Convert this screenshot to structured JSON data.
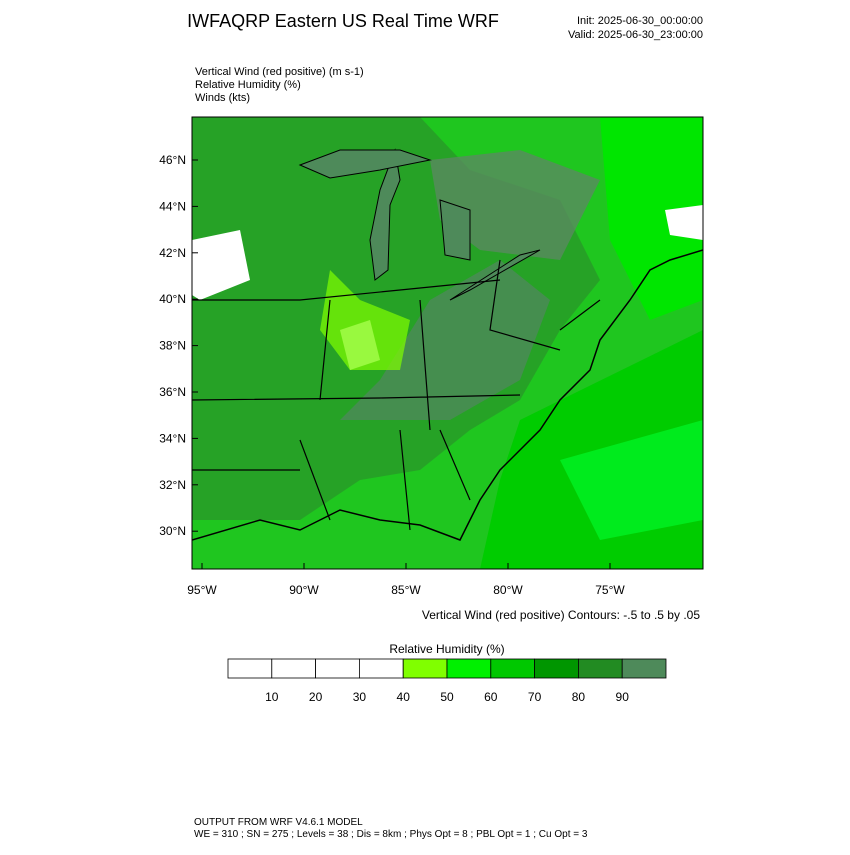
{
  "header": {
    "title": "IWFAQRP Eastern US Real Time WRF",
    "init": "Init: 2025-06-30_00:00:00",
    "valid": "Valid: 2025-06-30_23:00:00"
  },
  "fields": [
    "Vertical Wind (red positive)   (m s-1)",
    "Relative Humidity   (%)",
    "Winds   (kts)"
  ],
  "map": {
    "lat_labels": [
      "46°N",
      "44°N",
      "42°N",
      "40°N",
      "38°N",
      "36°N",
      "34°N",
      "32°N",
      "30°N"
    ],
    "lon_labels": [
      "95°W",
      "90°W",
      "85°W",
      "80°W",
      "75°W"
    ],
    "contour_note": "Vertical Wind (red positive) Contours: -.5 to .5 by .05"
  },
  "colorbar": {
    "title": "Relative Humidity  (%)",
    "ticks": [
      "10",
      "20",
      "30",
      "40",
      "50",
      "60",
      "70",
      "80",
      "90"
    ],
    "colors": [
      "#ffffff",
      "#ffffff",
      "#ffffff",
      "#ffffff",
      "#80ff00",
      "#00f000",
      "#00c800",
      "#009600",
      "#228b22",
      "#4e8a5a"
    ]
  },
  "footer": [
    "OUTPUT FROM WRF V4.6.1 MODEL",
    "WE = 310 ; SN = 275 ; Levels = 38 ; Dis = 8km ; Phys Opt = 8 ; PBL Opt = 1 ; Cu Opt = 3"
  ]
}
